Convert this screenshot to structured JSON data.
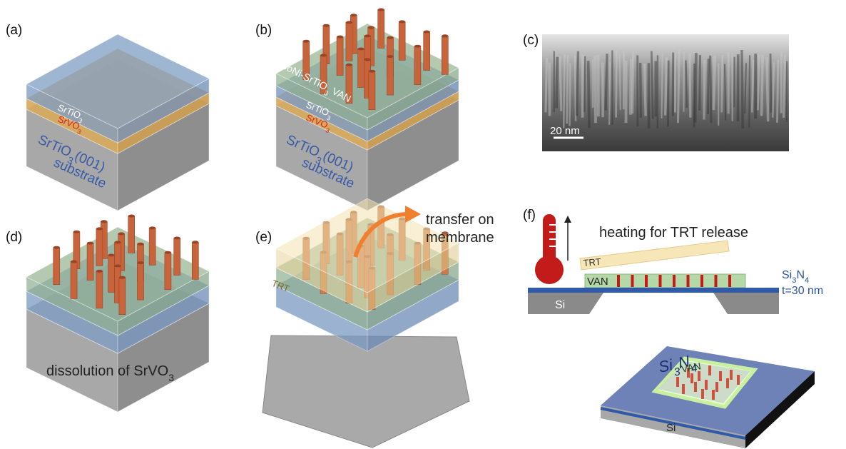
{
  "panel_a": {
    "label": "(a)",
    "top_film": {
      "base": "SrTiO",
      "sub": "3"
    },
    "sacrificial": {
      "base": "SrVO",
      "sub": "3"
    },
    "substrate": {
      "base": "SrTiO",
      "sub": "3",
      "tail": "(001)",
      "line2": "substrate"
    }
  },
  "panel_b": {
    "label": "(b)",
    "van": {
      "base": "CoNi-SrTiO",
      "sub": "3",
      "tail": " VAN"
    },
    "top_film": {
      "base": "SrTiO",
      "sub": "3"
    },
    "sacrificial": {
      "base": "SrVO",
      "sub": "3"
    },
    "substrate": {
      "base": "SrTiO",
      "sub": "3",
      "tail": "(001)",
      "line2": "substrate"
    }
  },
  "panel_c": {
    "label": "(c)",
    "scale_bar": "20 nm"
  },
  "panel_d": {
    "label": "(d)",
    "caption": {
      "base": "dissolution of SrVO",
      "sub": "3"
    }
  },
  "panel_e": {
    "label": "(e)",
    "arrow_text": [
      "transfer on",
      "membrane"
    ],
    "tape": "TRT"
  },
  "panel_f": {
    "label": "(f)",
    "caption": "heating for TRT release",
    "tape": "TRT",
    "van": "VAN",
    "membrane": {
      "base1": "Si",
      "sub1": "3",
      "base2": "N",
      "sub2": "4"
    },
    "thickness": "t=30 nm",
    "substrate": "Si",
    "chip_membrane": {
      "base1": "Si",
      "sub1": "3",
      "base2": "N",
      "sub2": "4"
    },
    "chip_van": "VAN",
    "chip_substrate": "Si"
  }
}
